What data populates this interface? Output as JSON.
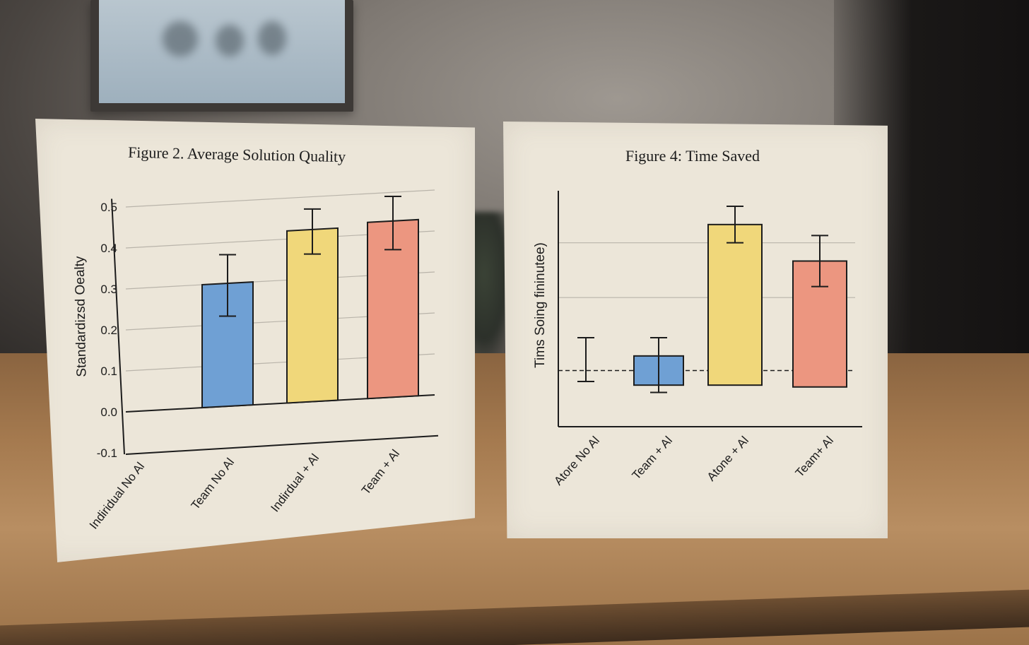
{
  "chart_data": [
    {
      "type": "bar",
      "title": "Figure 2. Average Solution Quality",
      "xlabel": "",
      "ylabel": "Standardizsd Oealty",
      "categories": [
        "Indiridual No Al",
        "Team No Al",
        "Indirdual + Al",
        "Team + Al"
      ],
      "values": [
        null,
        0.3,
        0.42,
        0.43
      ],
      "error_low": [
        null,
        0.22,
        0.36,
        0.36
      ],
      "error_high": [
        null,
        0.37,
        0.47,
        0.49
      ],
      "yticks": [
        "0.5",
        "0.4",
        "0.3",
        "0.2",
        "0.1",
        "0.0",
        "-0.1"
      ],
      "ylim": [
        -0.1,
        0.5
      ],
      "grid": true,
      "colors": [
        "#6fa0d4",
        "#6fa0d4",
        "#f0d77a",
        "#ec9680"
      ]
    },
    {
      "type": "bar",
      "title": "Figure 4: Time Saved",
      "xlabel": "",
      "ylabel": "Tims Soing fininutee)",
      "categories": [
        "Atore No Al",
        "Team + Al",
        "Atone + Al",
        "Team+ Al"
      ],
      "values": [
        null,
        0.4,
        4.0,
        3.0
      ],
      "error_low": [
        -0.3,
        -0.6,
        3.5,
        2.3
      ],
      "error_high": [
        0.9,
        0.9,
        4.5,
        3.7
      ],
      "baseline": 0,
      "ylim": [
        -1.5,
        4.5
      ],
      "grid": true,
      "colors": [
        "#6fa0d4",
        "#6fa0d4",
        "#f0d77a",
        "#ec9680"
      ]
    }
  ]
}
